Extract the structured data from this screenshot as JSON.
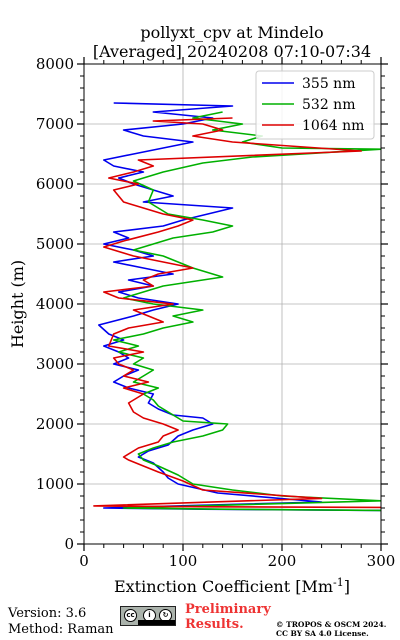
{
  "chart_data": {
    "type": "line",
    "title": "pollyxt_cpv at Mindelo",
    "subtitle": "[Averaged] 20240208 07:10-07:34",
    "xlabel": "Extinction Coefficient [Mm",
    "xlabel_exponent": "-1",
    "xlabel_close": "]",
    "ylabel": "Height (m)",
    "xlim": [
      0,
      300
    ],
    "ylim": [
      0,
      8000
    ],
    "xticks": [
      0,
      100,
      200,
      300
    ],
    "yticks": [
      0,
      1000,
      2000,
      3000,
      4000,
      5000,
      6000,
      7000,
      8000
    ],
    "grid": true,
    "legend_position": "top-right",
    "series": [
      {
        "name": "355 nm",
        "color": "#0000ee",
        "points": [
          [
            300,
            560
          ],
          [
            120,
            580
          ],
          [
            20,
            600
          ],
          [
            240,
            700
          ],
          [
            135,
            850
          ],
          [
            95,
            1000
          ],
          [
            85,
            1100
          ],
          [
            80,
            1200
          ],
          [
            70,
            1350
          ],
          [
            55,
            1450
          ],
          [
            65,
            1550
          ],
          [
            85,
            1650
          ],
          [
            95,
            1800
          ],
          [
            110,
            1900
          ],
          [
            130,
            2000
          ],
          [
            120,
            2100
          ],
          [
            90,
            2150
          ],
          [
            75,
            2250
          ],
          [
            65,
            2350
          ],
          [
            70,
            2500
          ],
          [
            45,
            2600
          ],
          [
            30,
            2700
          ],
          [
            40,
            2800
          ],
          [
            55,
            2900
          ],
          [
            30,
            3000
          ],
          [
            45,
            3100
          ],
          [
            35,
            3200
          ],
          [
            20,
            3300
          ],
          [
            40,
            3400
          ],
          [
            25,
            3500
          ],
          [
            15,
            3650
          ],
          [
            50,
            3800
          ],
          [
            70,
            3900
          ],
          [
            95,
            4000
          ],
          [
            55,
            4100
          ],
          [
            35,
            4200
          ],
          [
            70,
            4300
          ],
          [
            45,
            4400
          ],
          [
            90,
            4500
          ],
          [
            60,
            4600
          ],
          [
            30,
            4700
          ],
          [
            70,
            4800
          ],
          [
            50,
            4900
          ],
          [
            20,
            5000
          ],
          [
            45,
            5100
          ],
          [
            30,
            5200
          ],
          [
            80,
            5300
          ],
          [
            100,
            5400
          ],
          [
            125,
            5500
          ],
          [
            150,
            5600
          ],
          [
            60,
            5700
          ],
          [
            90,
            5800
          ],
          [
            70,
            5900
          ],
          [
            50,
            6000
          ],
          [
            35,
            6100
          ],
          [
            60,
            6200
          ],
          [
            30,
            6300
          ],
          [
            20,
            6400
          ],
          [
            50,
            6500
          ],
          [
            80,
            6600
          ],
          [
            110,
            6700
          ],
          [
            60,
            6800
          ],
          [
            40,
            6900
          ],
          [
            100,
            7000
          ],
          [
            130,
            7100
          ],
          [
            70,
            7200
          ],
          [
            150,
            7300
          ],
          [
            30,
            7350
          ]
        ]
      },
      {
        "name": "532 nm",
        "color": "#00b000",
        "points": [
          [
            300,
            560
          ],
          [
            140,
            580
          ],
          [
            40,
            600
          ],
          [
            300,
            720
          ],
          [
            200,
            800
          ],
          [
            150,
            900
          ],
          [
            110,
            1000
          ],
          [
            95,
            1150
          ],
          [
            75,
            1300
          ],
          [
            60,
            1400
          ],
          [
            55,
            1500
          ],
          [
            70,
            1600
          ],
          [
            90,
            1700
          ],
          [
            120,
            1800
          ],
          [
            140,
            1900
          ],
          [
            145,
            2000
          ],
          [
            100,
            2050
          ],
          [
            90,
            2150
          ],
          [
            75,
            2300
          ],
          [
            70,
            2400
          ],
          [
            60,
            2500
          ],
          [
            75,
            2600
          ],
          [
            50,
            2700
          ],
          [
            60,
            2800
          ],
          [
            70,
            2900
          ],
          [
            50,
            3000
          ],
          [
            60,
            3100
          ],
          [
            35,
            3200
          ],
          [
            55,
            3300
          ],
          [
            30,
            3400
          ],
          [
            60,
            3500
          ],
          [
            80,
            3600
          ],
          [
            110,
            3700
          ],
          [
            90,
            3800
          ],
          [
            120,
            3900
          ],
          [
            70,
            4000
          ],
          [
            40,
            4100
          ],
          [
            80,
            4300
          ],
          [
            140,
            4450
          ],
          [
            110,
            4600
          ],
          [
            80,
            4800
          ],
          [
            50,
            4900
          ],
          [
            70,
            5000
          ],
          [
            90,
            5100
          ],
          [
            130,
            5200
          ],
          [
            150,
            5300
          ],
          [
            120,
            5400
          ],
          [
            85,
            5500
          ],
          [
            65,
            5700
          ],
          [
            70,
            5900
          ],
          [
            50,
            6050
          ],
          [
            80,
            6200
          ],
          [
            120,
            6350
          ],
          [
            170,
            6450
          ],
          [
            300,
            6580
          ],
          [
            200,
            6600
          ],
          [
            160,
            6700
          ],
          [
            180,
            6800
          ],
          [
            130,
            6900
          ],
          [
            160,
            7000
          ],
          [
            110,
            7100
          ],
          [
            140,
            7200
          ]
        ]
      },
      {
        "name": "1064 nm",
        "color": "#dd0000",
        "points": [
          [
            300,
            610
          ],
          [
            130,
            620
          ],
          [
            10,
            635
          ],
          [
            240,
            760
          ],
          [
            120,
            900
          ],
          [
            100,
            1050
          ],
          [
            75,
            1200
          ],
          [
            60,
            1300
          ],
          [
            45,
            1400
          ],
          [
            40,
            1450
          ],
          [
            55,
            1600
          ],
          [
            75,
            1700
          ],
          [
            80,
            1800
          ],
          [
            95,
            1900
          ],
          [
            80,
            2000
          ],
          [
            60,
            2100
          ],
          [
            50,
            2200
          ],
          [
            45,
            2350
          ],
          [
            60,
            2500
          ],
          [
            40,
            2600
          ],
          [
            65,
            2700
          ],
          [
            40,
            2800
          ],
          [
            50,
            2900
          ],
          [
            35,
            3000
          ],
          [
            30,
            3100
          ],
          [
            60,
            3200
          ],
          [
            25,
            3300
          ],
          [
            30,
            3500
          ],
          [
            45,
            3600
          ],
          [
            80,
            3700
          ],
          [
            65,
            3800
          ],
          [
            50,
            3900
          ],
          [
            90,
            4000
          ],
          [
            35,
            4100
          ],
          [
            20,
            4200
          ],
          [
            70,
            4300
          ],
          [
            60,
            4400
          ],
          [
            75,
            4500
          ],
          [
            110,
            4600
          ],
          [
            80,
            4700
          ],
          [
            50,
            4800
          ],
          [
            20,
            4950
          ],
          [
            40,
            5050
          ],
          [
            75,
            5200
          ],
          [
            95,
            5300
          ],
          [
            110,
            5400
          ],
          [
            80,
            5500
          ],
          [
            60,
            5600
          ],
          [
            40,
            5700
          ],
          [
            30,
            5900
          ],
          [
            55,
            6000
          ],
          [
            25,
            6100
          ],
          [
            50,
            6200
          ],
          [
            70,
            6300
          ],
          [
            55,
            6400
          ],
          [
            280,
            6550
          ],
          [
            150,
            6700
          ],
          [
            110,
            6800
          ],
          [
            140,
            6900
          ],
          [
            120,
            7000
          ],
          [
            70,
            7050
          ],
          [
            150,
            7100
          ]
        ]
      }
    ]
  },
  "footer": {
    "version": "Version: 3.6",
    "method": "Method: Raman",
    "preliminary_line1": "Preliminary",
    "preliminary_line2": "Results.",
    "copyright_line1": "© TROPOS & OSCM 2024.",
    "copyright_line2": "CC BY SA 4.0 License."
  },
  "license_badge": {
    "symbols": [
      "cc-icon",
      "by-icon",
      "sa-icon"
    ]
  }
}
